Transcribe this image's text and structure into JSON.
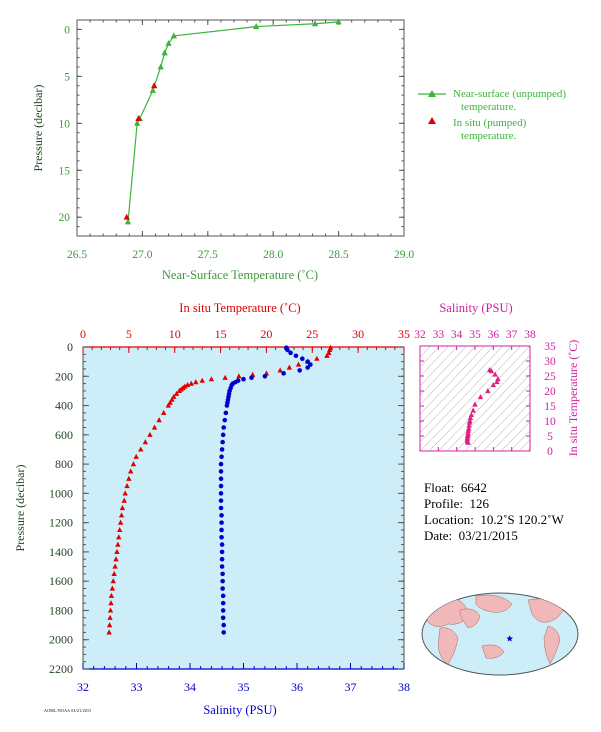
{
  "colors": {
    "near_surface": "#3cb43c",
    "in_situ": "#e00000",
    "salinity": "#0000cc",
    "ts_marker": "#e0207e",
    "axis_gray": "#555555",
    "panel_bg": "#cdeef8",
    "green_label": "#3c9a3c",
    "ylabel_dark": "#224422"
  },
  "chart_data": [
    {
      "type": "line",
      "id": "near_surface",
      "xlabel": "Near-Surface Temperature (˚C)",
      "ylabel": "Pressure (decibar)",
      "xlim": [
        26.5,
        29.0
      ],
      "ylim": [
        22,
        -1
      ],
      "xticks": [
        26.5,
        27.0,
        27.5,
        28.0,
        28.5,
        29.0
      ],
      "xtick_labels": [
        "26.5",
        "27.0",
        "27.5",
        "28.0",
        "28.5",
        "29.0"
      ],
      "yticks": [
        0,
        5,
        10,
        15,
        20
      ],
      "ytick_labels": [
        "0",
        "5",
        "10",
        "15",
        "20"
      ],
      "legend": [
        {
          "label1": "Near-surface (unpumped)",
          "label2": "temperature."
        },
        {
          "label1": "In situ (pumped)",
          "label2": "temperature."
        }
      ],
      "series": [
        {
          "marker": "triangle-line",
          "x": [
            28.5,
            28.32,
            27.87,
            27.24,
            27.2,
            27.17,
            27.14,
            27.08,
            26.98,
            26.96,
            26.89
          ],
          "y": [
            -0.8,
            -0.6,
            -0.3,
            0.7,
            1.5,
            2.5,
            4.0,
            6.5,
            9.5,
            10.0,
            20.5
          ]
        },
        {
          "marker": "triangle",
          "x": [
            27.09,
            26.97,
            26.88
          ],
          "y": [
            6.0,
            9.5,
            20.0
          ]
        }
      ]
    },
    {
      "type": "scatter",
      "id": "profile",
      "xlabel": "Salinity (PSU)",
      "ylabel": "Pressure (decibar)",
      "x2label": "In situ Temperature (˚C)",
      "xlim": [
        32,
        38
      ],
      "x2lim": [
        0,
        35
      ],
      "ylim": [
        2200,
        0
      ],
      "xticks": [
        32,
        33,
        34,
        35,
        36,
        37,
        38
      ],
      "xtick_labels": [
        "32",
        "33",
        "34",
        "35",
        "36",
        "37",
        "38"
      ],
      "x2ticks": [
        0,
        5,
        10,
        15,
        20,
        25,
        30,
        35
      ],
      "x2tick_labels": [
        "0",
        "5",
        "10",
        "15",
        "20",
        "25",
        "30",
        "35"
      ],
      "yticks": [
        0,
        200,
        400,
        600,
        800,
        1000,
        1200,
        1400,
        1600,
        1800,
        2000,
        2200
      ],
      "ytick_labels": [
        "0",
        "200",
        "400",
        "600",
        "800",
        "1000",
        "1200",
        "1400",
        "1600",
        "1800",
        "2000",
        "2200"
      ],
      "temperature": {
        "p": [
          5,
          20,
          40,
          60,
          80,
          100,
          120,
          140,
          160,
          180,
          190,
          200,
          210,
          220,
          230,
          240,
          250,
          260,
          270,
          280,
          290,
          300,
          320,
          340,
          360,
          380,
          400,
          450,
          500,
          550,
          600,
          650,
          700,
          750,
          800,
          850,
          900,
          950,
          1000,
          1050,
          1100,
          1150,
          1200,
          1250,
          1300,
          1350,
          1400,
          1450,
          1500,
          1550,
          1600,
          1650,
          1700,
          1750,
          1800,
          1850,
          1900,
          1950
        ],
        "t": [
          27.0,
          26.9,
          26.8,
          26.6,
          25.5,
          24.5,
          23.5,
          22.5,
          21.5,
          20.0,
          18.5,
          17.0,
          15.5,
          14.0,
          13.0,
          12.3,
          11.8,
          11.4,
          11.1,
          10.9,
          10.7,
          10.5,
          10.2,
          9.9,
          9.7,
          9.5,
          9.3,
          8.8,
          8.3,
          7.8,
          7.3,
          6.8,
          6.3,
          5.8,
          5.5,
          5.2,
          5.0,
          4.8,
          4.6,
          4.5,
          4.3,
          4.2,
          4.1,
          4.0,
          3.9,
          3.8,
          3.7,
          3.6,
          3.5,
          3.4,
          3.3,
          3.2,
          3.1,
          3.05,
          3.0,
          2.95,
          2.9,
          2.85
        ]
      },
      "salinity": {
        "p": [
          5,
          20,
          40,
          60,
          80,
          100,
          120,
          140,
          160,
          180,
          200,
          210,
          220,
          230,
          240,
          250,
          260,
          280,
          300,
          320,
          340,
          360,
          380,
          400,
          450,
          500,
          550,
          600,
          650,
          700,
          750,
          800,
          850,
          900,
          950,
          1000,
          1050,
          1100,
          1150,
          1200,
          1250,
          1300,
          1350,
          1400,
          1450,
          1500,
          1550,
          1600,
          1650,
          1700,
          1750,
          1800,
          1850,
          1900,
          1950
        ],
        "s": [
          35.8,
          35.82,
          35.88,
          35.98,
          36.1,
          36.2,
          36.25,
          36.2,
          36.05,
          35.75,
          35.4,
          35.15,
          35.0,
          34.9,
          34.85,
          34.8,
          34.78,
          34.76,
          34.74,
          34.73,
          34.72,
          34.71,
          34.7,
          34.69,
          34.67,
          34.65,
          34.63,
          34.62,
          34.61,
          34.6,
          34.59,
          34.58,
          34.58,
          34.58,
          34.58,
          34.58,
          34.58,
          34.58,
          34.59,
          34.59,
          34.59,
          34.59,
          34.6,
          34.6,
          34.6,
          34.6,
          34.61,
          34.61,
          34.61,
          34.62,
          34.62,
          34.62,
          34.62,
          34.63,
          34.63
        ]
      }
    },
    {
      "type": "scatter",
      "id": "ts",
      "title": "Salinity (PSU)",
      "ylabel": "In situ Temperature (˚C)",
      "xlim": [
        32,
        38
      ],
      "ylim": [
        0,
        35
      ],
      "xticks": [
        32,
        33,
        34,
        35,
        36,
        37,
        38
      ],
      "xtick_labels": [
        "32",
        "33",
        "34",
        "35",
        "36",
        "37",
        "38"
      ],
      "yticks": [
        0,
        5,
        10,
        15,
        20,
        25,
        30,
        35
      ],
      "ytick_labels": [
        "0",
        "5",
        "10",
        "15",
        "20",
        "25",
        "30",
        "35"
      ],
      "s": [
        35.8,
        35.9,
        36.1,
        36.25,
        36.2,
        36.0,
        35.7,
        35.3,
        35.0,
        34.9,
        34.8,
        34.75,
        34.72,
        34.7,
        34.68,
        34.66,
        34.64,
        34.62,
        34.61,
        34.6,
        34.59,
        34.58,
        34.58,
        34.6,
        34.62
      ],
      "t": [
        27.0,
        26.6,
        25.5,
        24.0,
        23.0,
        22.0,
        20.0,
        18.0,
        15.5,
        13.5,
        12.0,
        11.0,
        10.0,
        9.5,
        8.5,
        7.5,
        6.8,
        6.0,
        5.5,
        5.0,
        4.5,
        4.0,
        3.5,
        3.0,
        2.8
      ]
    }
  ],
  "info": {
    "float_label": "Float:",
    "float_value": "6642",
    "profile_label": "Profile:",
    "profile_value": "126",
    "location_label": "Location:",
    "location_value": "10.2˚S  120.2˚W",
    "date_label": "Date:",
    "date_value": "03/21/2015"
  },
  "map": {
    "marker_lat": -10.2,
    "marker_lon": -120.2
  },
  "footer_text": "AOML/NOAA 03/21/2015"
}
